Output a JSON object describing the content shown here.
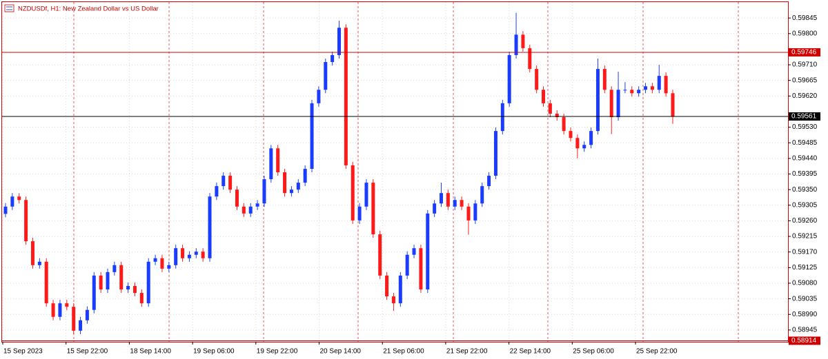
{
  "chart_data": {
    "type": "candlestick",
    "title": "NZDUSDf, H1:  New Zealand Dollar vs US Dollar",
    "up_color": "#1a3cff",
    "down_color": "#ff1a1a",
    "ylim": [
      0.58911,
      0.59891
    ],
    "yticks": [
      {
        "value": 0.59845,
        "label": "0.59845"
      },
      {
        "value": 0.598,
        "label": "0.59800"
      },
      {
        "value": 0.5971,
        "label": "0.59710"
      },
      {
        "value": 0.59665,
        "label": "0.59665"
      },
      {
        "value": 0.5962,
        "label": "0.59620"
      },
      {
        "value": 0.5953,
        "label": "0.59530"
      },
      {
        "value": 0.59485,
        "label": "0.59485"
      },
      {
        "value": 0.5944,
        "label": "0.59440"
      },
      {
        "value": 0.59395,
        "label": "0.59395"
      },
      {
        "value": 0.5935,
        "label": "0.59350"
      },
      {
        "value": 0.59305,
        "label": "0.59305"
      },
      {
        "value": 0.5926,
        "label": "0.59260"
      },
      {
        "value": 0.59215,
        "label": "0.59215"
      },
      {
        "value": 0.5917,
        "label": "0.59170"
      },
      {
        "value": 0.59125,
        "label": "0.59125"
      },
      {
        "value": 0.5908,
        "label": "0.59080"
      },
      {
        "value": 0.59035,
        "label": "0.59035"
      },
      {
        "value": 0.5899,
        "label": "0.58990"
      },
      {
        "value": 0.58945,
        "label": "0.58945"
      }
    ],
    "price_lines": [
      {
        "value": 0.59746,
        "label": "0.59746",
        "color": "#d00000"
      },
      {
        "value": 0.59561,
        "label": "0.59561",
        "color": "#000000"
      },
      {
        "value": 0.58914,
        "label": "0.58914",
        "color": "#d00000"
      }
    ],
    "x_labels": [
      "15 Sep 2023",
      "15 Sep 22:00",
      "18 Sep 14:00",
      "19 Sep 06:00",
      "19 Sep 22:00",
      "20 Sep 14:00",
      "21 Sep 06:00",
      "21 Sep 22:00",
      "22 Sep 14:00",
      "25 Sep 06:00",
      "25 Sep 22:00"
    ],
    "candles": [
      [
        0.5928,
        0.59311,
        0.5927,
        0.59301
      ],
      [
        0.59301,
        0.5934,
        0.59291,
        0.5933
      ],
      [
        0.5933,
        0.5934,
        0.5931,
        0.5932
      ],
      [
        0.5932,
        0.5933,
        0.59191,
        0.59201
      ],
      [
        0.59201,
        0.59211,
        0.59122,
        0.59132
      ],
      [
        0.59132,
        0.59152,
        0.59122,
        0.59142
      ],
      [
        0.59142,
        0.59152,
        0.59012,
        0.59022
      ],
      [
        0.59022,
        0.59032,
        0.58973,
        0.58983
      ],
      [
        0.58983,
        0.59032,
        0.58973,
        0.59022
      ],
      [
        0.59022,
        0.59032,
        0.59002,
        0.59012
      ],
      [
        0.59012,
        0.59022,
        0.58933,
        0.58943
      ],
      [
        0.58943,
        0.58983,
        0.58933,
        0.58973
      ],
      [
        0.58973,
        0.59013,
        0.58963,
        0.59003
      ],
      [
        0.59003,
        0.59112,
        0.58993,
        0.59102
      ],
      [
        0.59102,
        0.59112,
        0.59052,
        0.59062
      ],
      [
        0.59062,
        0.59122,
        0.59052,
        0.59112
      ],
      [
        0.59112,
        0.59142,
        0.59102,
        0.59132
      ],
      [
        0.59132,
        0.59142,
        0.59052,
        0.59062
      ],
      [
        0.59062,
        0.59082,
        0.59052,
        0.59072
      ],
      [
        0.59072,
        0.59082,
        0.59042,
        0.59052
      ],
      [
        0.59052,
        0.59062,
        0.59012,
        0.59022
      ],
      [
        0.59022,
        0.59152,
        0.59012,
        0.59142
      ],
      [
        0.59142,
        0.59162,
        0.59132,
        0.59152
      ],
      [
        0.59152,
        0.59162,
        0.59112,
        0.59122
      ],
      [
        0.59122,
        0.59142,
        0.59112,
        0.59132
      ],
      [
        0.59132,
        0.59191,
        0.59122,
        0.59181
      ],
      [
        0.59181,
        0.59191,
        0.59142,
        0.59152
      ],
      [
        0.59152,
        0.59172,
        0.59142,
        0.59162
      ],
      [
        0.59162,
        0.59181,
        0.59152,
        0.59171
      ],
      [
        0.59171,
        0.59181,
        0.59142,
        0.59152
      ],
      [
        0.59152,
        0.5934,
        0.59142,
        0.5933
      ],
      [
        0.5933,
        0.5937,
        0.5932,
        0.5936
      ],
      [
        0.5936,
        0.594,
        0.5935,
        0.5939
      ],
      [
        0.5939,
        0.594,
        0.5934,
        0.5935
      ],
      [
        0.5935,
        0.5936,
        0.59291,
        0.59301
      ],
      [
        0.59301,
        0.59311,
        0.59271,
        0.59281
      ],
      [
        0.59281,
        0.59311,
        0.59271,
        0.59301
      ],
      [
        0.59301,
        0.5932,
        0.59291,
        0.5931
      ],
      [
        0.5931,
        0.5939,
        0.593,
        0.5938
      ],
      [
        0.5938,
        0.59479,
        0.5937,
        0.59469
      ],
      [
        0.59469,
        0.59479,
        0.5939,
        0.594
      ],
      [
        0.594,
        0.5941,
        0.5933,
        0.5934
      ],
      [
        0.5934,
        0.5936,
        0.5933,
        0.5935
      ],
      [
        0.5935,
        0.5938,
        0.5934,
        0.5937
      ],
      [
        0.5937,
        0.5942,
        0.5936,
        0.5941
      ],
      [
        0.5941,
        0.59609,
        0.594,
        0.59599
      ],
      [
        0.59599,
        0.59648,
        0.59589,
        0.59638
      ],
      [
        0.59638,
        0.59728,
        0.59628,
        0.59718
      ],
      [
        0.59718,
        0.59748,
        0.59708,
        0.59738
      ],
      [
        0.59738,
        0.59837,
        0.59728,
        0.59817
      ],
      [
        0.59817,
        0.59827,
        0.5941,
        0.5942
      ],
      [
        0.5942,
        0.5943,
        0.59251,
        0.59261
      ],
      [
        0.59261,
        0.59311,
        0.59251,
        0.59301
      ],
      [
        0.59301,
        0.5938,
        0.59291,
        0.5937
      ],
      [
        0.5937,
        0.5938,
        0.59211,
        0.59221
      ],
      [
        0.59221,
        0.59231,
        0.59092,
        0.59102
      ],
      [
        0.59102,
        0.59112,
        0.59032,
        0.59042
      ],
      [
        0.59042,
        0.59052,
        0.59,
        0.59022
      ],
      [
        0.59022,
        0.59112,
        0.59012,
        0.59102
      ],
      [
        0.59102,
        0.59172,
        0.59092,
        0.59162
      ],
      [
        0.59162,
        0.59191,
        0.59152,
        0.59181
      ],
      [
        0.59181,
        0.59191,
        0.59052,
        0.59062
      ],
      [
        0.59062,
        0.59291,
        0.59052,
        0.59281
      ],
      [
        0.59281,
        0.5932,
        0.59271,
        0.5931
      ],
      [
        0.5931,
        0.5937,
        0.593,
        0.5934
      ],
      [
        0.5934,
        0.5935,
        0.59291,
        0.59301
      ],
      [
        0.59301,
        0.5933,
        0.59291,
        0.5932
      ],
      [
        0.5932,
        0.5933,
        0.59291,
        0.59301
      ],
      [
        0.59301,
        0.59311,
        0.5922,
        0.59261
      ],
      [
        0.59261,
        0.5932,
        0.59251,
        0.5931
      ],
      [
        0.5931,
        0.5937,
        0.593,
        0.5936
      ],
      [
        0.5936,
        0.594,
        0.5935,
        0.5939
      ],
      [
        0.5939,
        0.59529,
        0.5938,
        0.59519
      ],
      [
        0.59519,
        0.59609,
        0.59509,
        0.59599
      ],
      [
        0.59599,
        0.59748,
        0.59589,
        0.59738
      ],
      [
        0.59738,
        0.5986,
        0.59728,
        0.59797
      ],
      [
        0.59797,
        0.59807,
        0.59748,
        0.59758
      ],
      [
        0.59758,
        0.59768,
        0.59688,
        0.59698
      ],
      [
        0.59698,
        0.59708,
        0.59628,
        0.59638
      ],
      [
        0.59638,
        0.59648,
        0.59589,
        0.59599
      ],
      [
        0.59599,
        0.59609,
        0.59559,
        0.59569
      ],
      [
        0.59569,
        0.59579,
        0.59549,
        0.59559
      ],
      [
        0.59559,
        0.59569,
        0.59509,
        0.59519
      ],
      [
        0.59519,
        0.59529,
        0.59489,
        0.59499
      ],
      [
        0.59499,
        0.59509,
        0.5944,
        0.59469
      ],
      [
        0.59469,
        0.59489,
        0.59459,
        0.59479
      ],
      [
        0.59479,
        0.59529,
        0.59469,
        0.59519
      ],
      [
        0.59519,
        0.59728,
        0.59509,
        0.59698
      ],
      [
        0.59698,
        0.59708,
        0.59628,
        0.59638
      ],
      [
        0.59638,
        0.59648,
        0.5951,
        0.59559
      ],
      [
        0.59559,
        0.5969,
        0.59549,
        0.59638
      ],
      [
        0.59638,
        0.5966,
        0.59628,
        0.59638
      ],
      [
        0.59638,
        0.59648,
        0.59618,
        0.59628
      ],
      [
        0.59628,
        0.59648,
        0.59618,
        0.59638
      ],
      [
        0.59638,
        0.59658,
        0.59628,
        0.59648
      ],
      [
        0.59648,
        0.59658,
        0.59628,
        0.59638
      ],
      [
        0.59638,
        0.5971,
        0.59628,
        0.59678
      ],
      [
        0.59678,
        0.59688,
        0.59618,
        0.59628
      ],
      [
        0.59628,
        0.59638,
        0.5954,
        0.59561
      ]
    ]
  }
}
